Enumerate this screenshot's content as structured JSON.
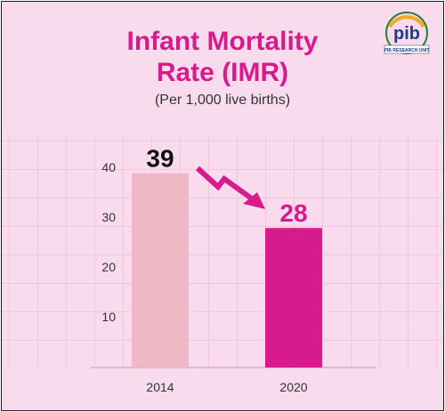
{
  "header": {
    "title_line1": "Infant Mortality",
    "title_line2": "Rate (IMR)",
    "subtitle": "(Per 1,000 live births)"
  },
  "logo": {
    "text": "pib",
    "caption": "PIB RESEARCH UNIT",
    "icon": "pib-logo-icon"
  },
  "colors": {
    "accent": "#d81b8c",
    "bar_2014": "#eeb9c4",
    "bar_2020": "#d81b8c",
    "background": "#f8dcee"
  },
  "chart_data": {
    "type": "bar",
    "categories": [
      "2014",
      "2020"
    ],
    "values": [
      39,
      28
    ],
    "value_labels": [
      "39",
      "28"
    ],
    "yticks": [
      10,
      20,
      30,
      40
    ],
    "ylim": [
      0,
      45
    ],
    "grid": true,
    "annotation": "decreasing-trend-arrow"
  }
}
